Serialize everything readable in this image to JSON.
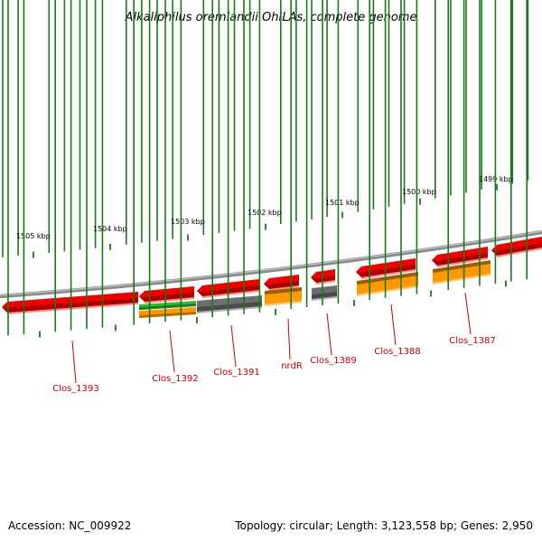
{
  "title": "Alkaliphilus oremlandii OhILAs, complete genome",
  "footer": {
    "accession": "Accession: NC_009922",
    "summary": "Topology: circular; Length: 3,123,558 bp; Genes: 2,950"
  },
  "colors": {
    "backbone": "#8a8a8a",
    "tick": "#1a7a1a",
    "label": "#cc0000",
    "red_gene": "#ee0000",
    "orange_gene": "#ff9900",
    "gray_gene": "#6e6e6e",
    "green_gene": "#33bb33"
  },
  "ruler": {
    "major_labels": [
      {
        "text": "1505 kbp",
        "kbp": 1505
      },
      {
        "text": "1504 kbp",
        "kbp": 1504
      },
      {
        "text": "1503 kbp",
        "kbp": 1503
      },
      {
        "text": "1502 kbp",
        "kbp": 1502
      },
      {
        "text": "1501 kbp",
        "kbp": 1501
      },
      {
        "text": "1500 kbp",
        "kbp": 1500
      },
      {
        "text": "1499 kbp",
        "kbp": 1499
      }
    ]
  },
  "gene_labels": [
    {
      "name": "Clos_1393"
    },
    {
      "name": "Clos_1392"
    },
    {
      "name": "Clos_1391"
    },
    {
      "name": "nrdR"
    },
    {
      "name": "Clos_1389"
    },
    {
      "name": "Clos_1388"
    },
    {
      "name": "Clos_1387"
    }
  ]
}
